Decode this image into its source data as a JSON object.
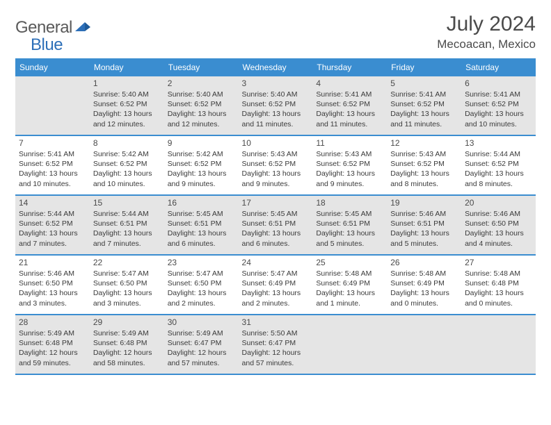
{
  "logo": {
    "text1": "General",
    "text2": "Blue"
  },
  "title": "July 2024",
  "location": "Mecoacan, Mexico",
  "colors": {
    "header_blue": "#3a8dd0",
    "shade_gray": "#e5e5e5",
    "text_dark": "#3a3a3a",
    "logo_gray": "#5a5a5a",
    "logo_blue": "#2d6fb8"
  },
  "day_headers": [
    "Sunday",
    "Monday",
    "Tuesday",
    "Wednesday",
    "Thursday",
    "Friday",
    "Saturday"
  ],
  "weeks": [
    {
      "shaded": true,
      "cells": [
        {
          "num": "",
          "lines": []
        },
        {
          "num": "1",
          "lines": [
            "Sunrise: 5:40 AM",
            "Sunset: 6:52 PM",
            "Daylight: 13 hours",
            "and 12 minutes."
          ]
        },
        {
          "num": "2",
          "lines": [
            "Sunrise: 5:40 AM",
            "Sunset: 6:52 PM",
            "Daylight: 13 hours",
            "and 12 minutes."
          ]
        },
        {
          "num": "3",
          "lines": [
            "Sunrise: 5:40 AM",
            "Sunset: 6:52 PM",
            "Daylight: 13 hours",
            "and 11 minutes."
          ]
        },
        {
          "num": "4",
          "lines": [
            "Sunrise: 5:41 AM",
            "Sunset: 6:52 PM",
            "Daylight: 13 hours",
            "and 11 minutes."
          ]
        },
        {
          "num": "5",
          "lines": [
            "Sunrise: 5:41 AM",
            "Sunset: 6:52 PM",
            "Daylight: 13 hours",
            "and 11 minutes."
          ]
        },
        {
          "num": "6",
          "lines": [
            "Sunrise: 5:41 AM",
            "Sunset: 6:52 PM",
            "Daylight: 13 hours",
            "and 10 minutes."
          ]
        }
      ]
    },
    {
      "shaded": false,
      "cells": [
        {
          "num": "7",
          "lines": [
            "Sunrise: 5:41 AM",
            "Sunset: 6:52 PM",
            "Daylight: 13 hours",
            "and 10 minutes."
          ]
        },
        {
          "num": "8",
          "lines": [
            "Sunrise: 5:42 AM",
            "Sunset: 6:52 PM",
            "Daylight: 13 hours",
            "and 10 minutes."
          ]
        },
        {
          "num": "9",
          "lines": [
            "Sunrise: 5:42 AM",
            "Sunset: 6:52 PM",
            "Daylight: 13 hours",
            "and 9 minutes."
          ]
        },
        {
          "num": "10",
          "lines": [
            "Sunrise: 5:43 AM",
            "Sunset: 6:52 PM",
            "Daylight: 13 hours",
            "and 9 minutes."
          ]
        },
        {
          "num": "11",
          "lines": [
            "Sunrise: 5:43 AM",
            "Sunset: 6:52 PM",
            "Daylight: 13 hours",
            "and 9 minutes."
          ]
        },
        {
          "num": "12",
          "lines": [
            "Sunrise: 5:43 AM",
            "Sunset: 6:52 PM",
            "Daylight: 13 hours",
            "and 8 minutes."
          ]
        },
        {
          "num": "13",
          "lines": [
            "Sunrise: 5:44 AM",
            "Sunset: 6:52 PM",
            "Daylight: 13 hours",
            "and 8 minutes."
          ]
        }
      ]
    },
    {
      "shaded": true,
      "cells": [
        {
          "num": "14",
          "lines": [
            "Sunrise: 5:44 AM",
            "Sunset: 6:52 PM",
            "Daylight: 13 hours",
            "and 7 minutes."
          ]
        },
        {
          "num": "15",
          "lines": [
            "Sunrise: 5:44 AM",
            "Sunset: 6:51 PM",
            "Daylight: 13 hours",
            "and 7 minutes."
          ]
        },
        {
          "num": "16",
          "lines": [
            "Sunrise: 5:45 AM",
            "Sunset: 6:51 PM",
            "Daylight: 13 hours",
            "and 6 minutes."
          ]
        },
        {
          "num": "17",
          "lines": [
            "Sunrise: 5:45 AM",
            "Sunset: 6:51 PM",
            "Daylight: 13 hours",
            "and 6 minutes."
          ]
        },
        {
          "num": "18",
          "lines": [
            "Sunrise: 5:45 AM",
            "Sunset: 6:51 PM",
            "Daylight: 13 hours",
            "and 5 minutes."
          ]
        },
        {
          "num": "19",
          "lines": [
            "Sunrise: 5:46 AM",
            "Sunset: 6:51 PM",
            "Daylight: 13 hours",
            "and 5 minutes."
          ]
        },
        {
          "num": "20",
          "lines": [
            "Sunrise: 5:46 AM",
            "Sunset: 6:50 PM",
            "Daylight: 13 hours",
            "and 4 minutes."
          ]
        }
      ]
    },
    {
      "shaded": false,
      "cells": [
        {
          "num": "21",
          "lines": [
            "Sunrise: 5:46 AM",
            "Sunset: 6:50 PM",
            "Daylight: 13 hours",
            "and 3 minutes."
          ]
        },
        {
          "num": "22",
          "lines": [
            "Sunrise: 5:47 AM",
            "Sunset: 6:50 PM",
            "Daylight: 13 hours",
            "and 3 minutes."
          ]
        },
        {
          "num": "23",
          "lines": [
            "Sunrise: 5:47 AM",
            "Sunset: 6:50 PM",
            "Daylight: 13 hours",
            "and 2 minutes."
          ]
        },
        {
          "num": "24",
          "lines": [
            "Sunrise: 5:47 AM",
            "Sunset: 6:49 PM",
            "Daylight: 13 hours",
            "and 2 minutes."
          ]
        },
        {
          "num": "25",
          "lines": [
            "Sunrise: 5:48 AM",
            "Sunset: 6:49 PM",
            "Daylight: 13 hours",
            "and 1 minute."
          ]
        },
        {
          "num": "26",
          "lines": [
            "Sunrise: 5:48 AM",
            "Sunset: 6:49 PM",
            "Daylight: 13 hours",
            "and 0 minutes."
          ]
        },
        {
          "num": "27",
          "lines": [
            "Sunrise: 5:48 AM",
            "Sunset: 6:48 PM",
            "Daylight: 13 hours",
            "and 0 minutes."
          ]
        }
      ]
    },
    {
      "shaded": true,
      "cells": [
        {
          "num": "28",
          "lines": [
            "Sunrise: 5:49 AM",
            "Sunset: 6:48 PM",
            "Daylight: 12 hours",
            "and 59 minutes."
          ]
        },
        {
          "num": "29",
          "lines": [
            "Sunrise: 5:49 AM",
            "Sunset: 6:48 PM",
            "Daylight: 12 hours",
            "and 58 minutes."
          ]
        },
        {
          "num": "30",
          "lines": [
            "Sunrise: 5:49 AM",
            "Sunset: 6:47 PM",
            "Daylight: 12 hours",
            "and 57 minutes."
          ]
        },
        {
          "num": "31",
          "lines": [
            "Sunrise: 5:50 AM",
            "Sunset: 6:47 PM",
            "Daylight: 12 hours",
            "and 57 minutes."
          ]
        },
        {
          "num": "",
          "lines": []
        },
        {
          "num": "",
          "lines": []
        },
        {
          "num": "",
          "lines": []
        }
      ]
    }
  ]
}
